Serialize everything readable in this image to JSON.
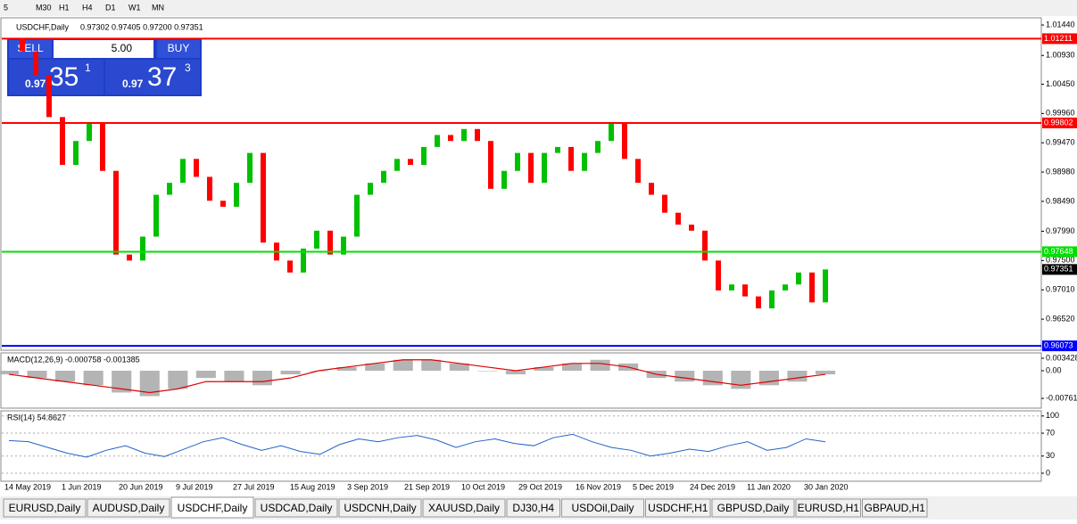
{
  "toolbar": {
    "timeframes": [
      "5",
      "M30",
      "H1",
      "H4",
      "D1",
      "W1",
      "MN"
    ]
  },
  "header": {
    "symbol": "USDCHF,Daily",
    "ohlc": "0.97302 0.97405 0.97200 0.97351"
  },
  "trade_panel": {
    "sell": "SELL",
    "buy": "BUY",
    "volume": "5.00",
    "bid": {
      "prefix": "0.97",
      "big": "35",
      "sup": "1"
    },
    "ask": {
      "prefix": "0.97",
      "big": "37",
      "sup": "3"
    }
  },
  "chart_data": [
    {
      "type": "candlestick",
      "close": [
        1.012,
        1.01,
        1.006,
        0.999,
        0.991,
        0.995,
        0.998,
        0.99,
        0.976,
        0.975,
        0.979,
        0.986,
        0.988,
        0.992,
        0.989,
        0.985,
        0.984,
        0.988,
        0.993,
        0.978,
        0.975,
        0.973,
        0.977,
        0.98,
        0.976,
        0.979,
        0.986,
        0.988,
        0.99,
        0.992,
        0.991,
        0.994,
        0.996,
        0.995,
        0.997,
        0.995,
        0.987,
        0.99,
        0.993,
        0.988,
        0.993,
        0.994,
        0.99,
        0.993,
        0.995,
        0.998,
        0.992,
        0.988,
        0.986,
        0.983,
        0.981,
        0.98,
        0.975,
        0.97,
        0.971,
        0.969,
        0.967,
        0.97,
        0.971,
        0.973,
        0.968,
        0.97351
      ],
      "ylim": [
        0.96,
        1.0156
      ],
      "yticks": [
        {
          "value": 1.0144,
          "label": "1.01440"
        },
        {
          "value": 1.0093,
          "label": "1.00930"
        },
        {
          "value": 1.0045,
          "label": "1.00450"
        },
        {
          "value": 0.9996,
          "label": "0.99960"
        },
        {
          "value": 0.9947,
          "label": "0.99470"
        },
        {
          "value": 0.9898,
          "label": "0.98980"
        },
        {
          "value": 0.9849,
          "label": "0.98490"
        },
        {
          "value": 0.9799,
          "label": "0.97990"
        },
        {
          "value": 0.975,
          "label": "0.97500"
        },
        {
          "value": 0.9701,
          "label": "0.97010"
        },
        {
          "value": 0.9652,
          "label": "0.96520"
        }
      ],
      "levels": [
        {
          "value": 1.01211,
          "color": "#ff0000"
        },
        {
          "value": 0.99802,
          "color": "#ff0000"
        },
        {
          "value": 0.97648,
          "color": "#00e000"
        },
        {
          "value": 0.96073,
          "color": "#0000ff"
        }
      ],
      "current": 0.97351,
      "x_labels": [
        "14 May 2019",
        "1 Jun 2019",
        "20 Jun 2019",
        "9 Jul 2019",
        "27 Jul 2019",
        "15 Aug 2019",
        "3 Sep 2019",
        "21 Sep 2019",
        "10 Oct 2019",
        "29 Oct 2019",
        "16 Nov 2019",
        "5 Dec 2019",
        "24 Dec 2019",
        "11 Jan 2020",
        "30 Jan 2020"
      ]
    },
    {
      "type": "macd",
      "title": "MACD(12,26,9) -0.000758 -0.001385",
      "histogram": [
        -0.001,
        -0.002,
        -0.003,
        -0.004,
        -0.006,
        -0.007,
        -0.005,
        -0.002,
        -0.003,
        -0.004,
        -0.001,
        0.0,
        0.001,
        0.002,
        0.003,
        0.003,
        0.002,
        0.0,
        -0.001,
        0.001,
        0.002,
        0.003,
        0.002,
        -0.002,
        -0.003,
        -0.004,
        -0.005,
        -0.004,
        -0.003,
        -0.001
      ],
      "signal": [
        -0.001,
        -0.002,
        -0.003,
        -0.004,
        -0.005,
        -0.006,
        -0.005,
        -0.003,
        -0.003,
        -0.003,
        -0.002,
        0.0,
        0.001,
        0.002,
        0.003,
        0.003,
        0.002,
        0.001,
        0.0,
        0.001,
        0.002,
        0.002,
        0.001,
        -0.001,
        -0.002,
        -0.003,
        -0.004,
        -0.003,
        -0.002,
        -0.001
      ],
      "ylim": [
        -0.0103,
        0.0049
      ],
      "yticks": [
        {
          "value": 0.003428,
          "label": "0.003428"
        },
        {
          "value": 0,
          "label": "0.00"
        },
        {
          "value": -0.00761,
          "label": "-0.00761"
        }
      ]
    },
    {
      "type": "line",
      "title": "RSI(14) 54.8627",
      "values": [
        57,
        55,
        45,
        35,
        28,
        40,
        48,
        35,
        29,
        42,
        55,
        62,
        50,
        40,
        48,
        38,
        33,
        50,
        60,
        55,
        62,
        66,
        58,
        45,
        55,
        60,
        52,
        48,
        62,
        68,
        55,
        45,
        40,
        30,
        35,
        42,
        38,
        48,
        55,
        40,
        45,
        60,
        54.8627
      ],
      "color": "#1e64c8",
      "ylim": [
        -14,
        109
      ],
      "yticks": [
        100,
        70,
        30,
        0
      ]
    }
  ],
  "tabs": [
    "EURUSD,Daily",
    "AUDUSD,Daily",
    "USDCHF,Daily",
    "USDCAD,Daily",
    "USDCNH,Daily",
    "XAUUSD,Daily",
    "DJ30,H4",
    "USDOil,Daily",
    "USDCHF,H1",
    "GBPUSD,Daily",
    "EURUSD,H1",
    "GBPAUD,H1"
  ],
  "active_tab": 2
}
